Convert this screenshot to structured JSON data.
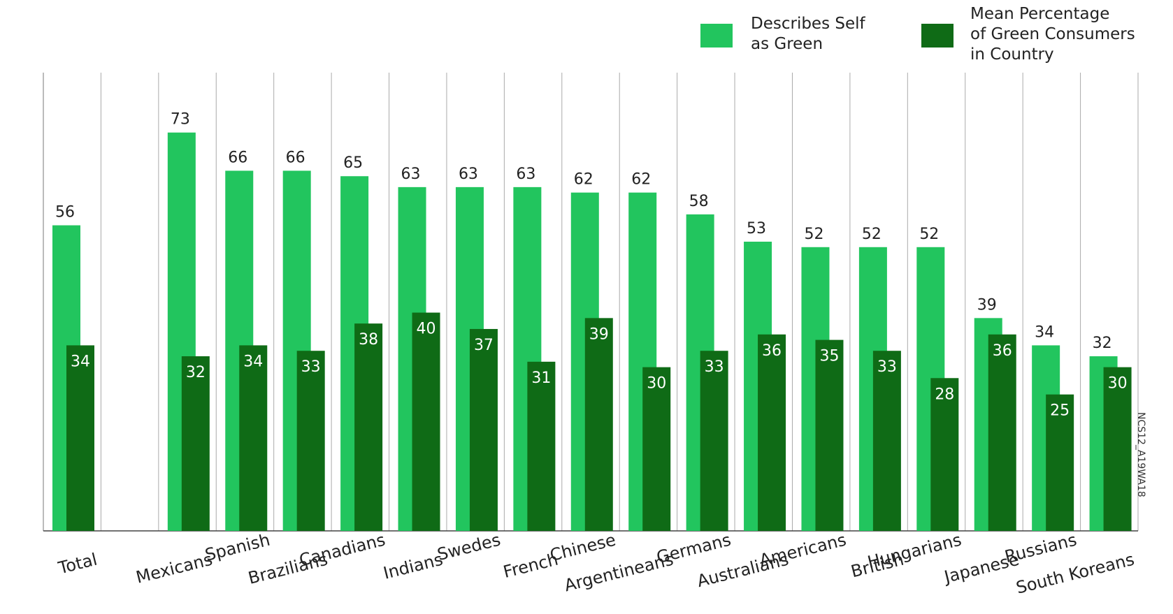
{
  "chart_data": {
    "type": "bar",
    "title": "",
    "xlabel": "",
    "ylabel": "",
    "ylim": [
      0,
      85
    ],
    "grid": "vertical separators",
    "legend_position": "top-right",
    "categories": [
      "Total",
      "",
      "Mexicans",
      "Spanish",
      "Brazilians",
      "Canadians",
      "Indians",
      "Swedes",
      "French",
      "Chinese",
      "Argentineans",
      "Germans",
      "Australians",
      "Americans",
      "British",
      "Hungarians",
      "Japanese",
      "Russians",
      "South Koreans"
    ],
    "series": [
      {
        "name": "Describes Self as Green",
        "color": "#22c55e",
        "values": [
          56,
          null,
          73,
          66,
          66,
          65,
          63,
          63,
          63,
          62,
          62,
          58,
          53,
          52,
          52,
          52,
          39,
          34,
          32
        ]
      },
      {
        "name": "Mean Percentage of Green Consumers in Country",
        "color": "#0f6b16",
        "values": [
          34,
          null,
          32,
          34,
          33,
          38,
          40,
          37,
          31,
          39,
          30,
          33,
          36,
          35,
          33,
          28,
          36,
          25,
          30
        ]
      }
    ],
    "legend": [
      {
        "lines": [
          "Describes Self",
          "as Green"
        ],
        "color": "#22c55e"
      },
      {
        "lines": [
          "Mean Percentage",
          "of Green Consumers",
          "in Country"
        ],
        "color": "#0f6b16"
      }
    ],
    "source_id": "NCS12_A19WA18"
  }
}
